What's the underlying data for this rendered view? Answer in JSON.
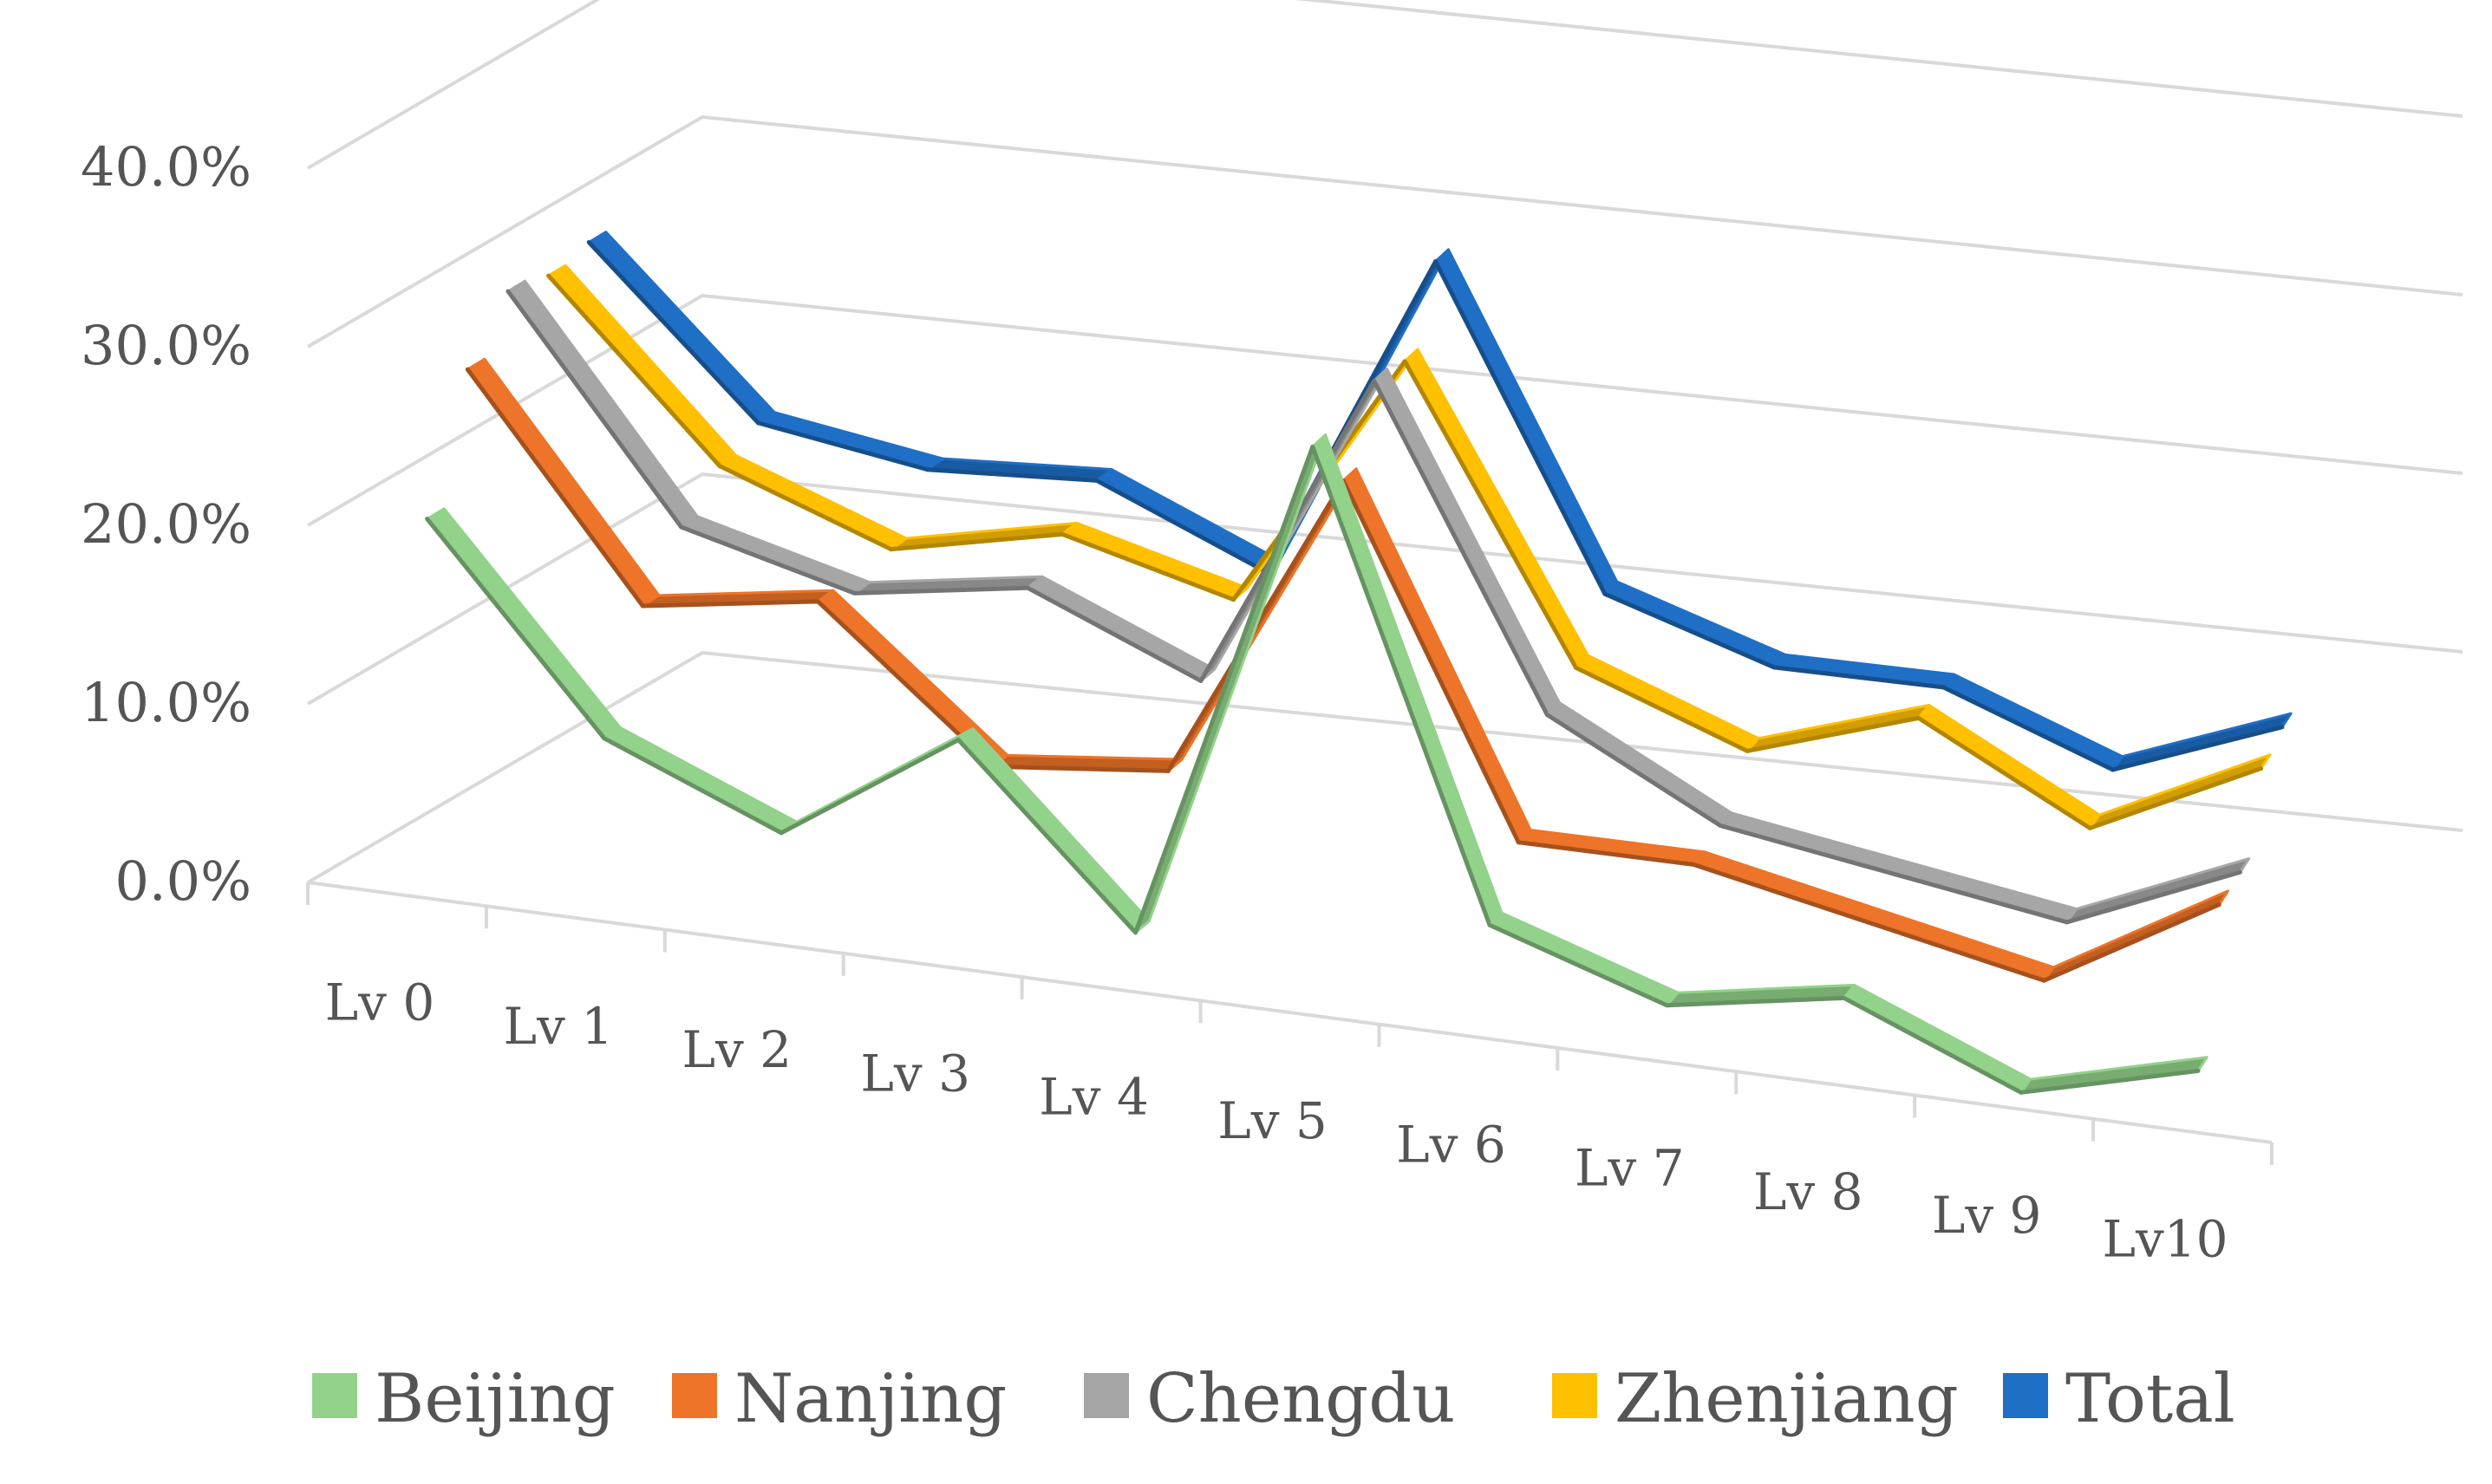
{
  "chart_data": {
    "type": "line",
    "style": "3d-line",
    "title": "",
    "xlabel": "",
    "ylabel": "",
    "categories": [
      "Lv 0",
      "Lv 1",
      "Lv 2",
      "Lv 3",
      "Lv 4",
      "Lv 5",
      "Lv 6",
      "Lv 7",
      "Lv 8",
      "Lv 9",
      "Lv10"
    ],
    "ylim": [
      0,
      40
    ],
    "yticks": [
      "0.0%",
      "10.0%",
      "20.0%",
      "30.0%",
      "40.0%"
    ],
    "grid": true,
    "legend_position": "bottom",
    "series": [
      {
        "name": "Beijing",
        "color": "#92D28A",
        "values": [
          20.0,
          9.0,
          5.0,
          11.5,
          2.0,
          30.5,
          5.0,
          1.8,
          3.5,
          -0.5,
          2.0
        ]
      },
      {
        "name": "Nanjing",
        "color": "#ED7428",
        "values": [
          27.0,
          15.0,
          16.5,
          8.5,
          9.5,
          27.0,
          8.0,
          8.0,
          6.0,
          4.0,
          9.5
        ]
      },
      {
        "name": "Chengdu",
        "color": "#A6A6A6",
        "values": [
          30.0,
          18.0,
          15.5,
          17.0,
          13.0,
          31.0,
          13.5,
          8.5,
          7.0,
          5.5,
          9.5
        ]
      },
      {
        "name": "Zhenjiang",
        "color": "#FFC000",
        "values": [
          29.5,
          20.0,
          16.5,
          18.5,
          16.0,
          30.5,
          14.5,
          11.0,
          14.0,
          9.0,
          13.5
        ]
      },
      {
        "name": "Total",
        "color": "#1F6FC6",
        "values": [
          30.0,
          21.0,
          19.5,
          20.0,
          16.0,
          34.5,
          17.0,
          14.0,
          14.0,
          10.5,
          14.0
        ]
      }
    ]
  }
}
